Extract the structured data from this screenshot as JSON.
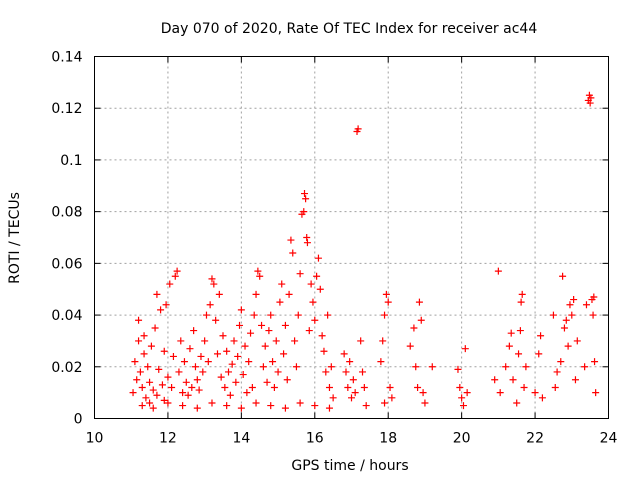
{
  "chart_data": {
    "type": "scatter",
    "title": "Day 070 of 2020, Rate Of TEC Index for receiver ac44",
    "xlabel": "GPS time / hours",
    "ylabel": "ROTI / TECUs",
    "xlim": [
      10,
      24
    ],
    "ylim": [
      0,
      0.14
    ],
    "xticks": [
      10,
      12,
      14,
      16,
      18,
      20,
      22,
      24
    ],
    "yticks": [
      0,
      0.02,
      0.04,
      0.06,
      0.08,
      0.1,
      0.12,
      0.14
    ],
    "xtick_labels": [
      "10",
      "12",
      "14",
      "16",
      "18",
      "20",
      "22",
      "24"
    ],
    "ytick_labels": [
      "0",
      "0.02",
      "0.04",
      "0.06",
      "0.08",
      "0.1",
      "0.12",
      "0.14"
    ],
    "grid": true,
    "marker": "+",
    "color": "#ff0000",
    "series": [
      {
        "points": [
          [
            11.05,
            0.01
          ],
          [
            11.1,
            0.022
          ],
          [
            11.15,
            0.015
          ],
          [
            11.2,
            0.03
          ],
          [
            11.25,
            0.018
          ],
          [
            11.3,
            0.012
          ],
          [
            11.35,
            0.025
          ],
          [
            11.4,
            0.008
          ],
          [
            11.45,
            0.02
          ],
          [
            11.5,
            0.014
          ],
          [
            11.55,
            0.028
          ],
          [
            11.6,
            0.011
          ],
          [
            11.65,
            0.035
          ],
          [
            11.7,
            0.048
          ],
          [
            11.75,
            0.019
          ],
          [
            11.8,
            0.042
          ],
          [
            11.85,
            0.013
          ],
          [
            11.9,
            0.026
          ],
          [
            11.95,
            0.044
          ],
          [
            12.0,
            0.016
          ],
          [
            11.2,
            0.038
          ],
          [
            11.35,
            0.032
          ],
          [
            11.5,
            0.006
          ],
          [
            11.7,
            0.009
          ],
          [
            11.9,
            0.007
          ],
          [
            12.05,
            0.052
          ],
          [
            12.1,
            0.012
          ],
          [
            12.15,
            0.024
          ],
          [
            12.2,
            0.055
          ],
          [
            12.25,
            0.057
          ],
          [
            12.3,
            0.018
          ],
          [
            12.35,
            0.03
          ],
          [
            12.4,
            0.01
          ],
          [
            12.45,
            0.022
          ],
          [
            12.5,
            0.014
          ],
          [
            12.55,
            0.009
          ],
          [
            12.6,
            0.027
          ],
          [
            12.65,
            0.012
          ],
          [
            12.7,
            0.034
          ],
          [
            12.75,
            0.02
          ],
          [
            12.8,
            0.015
          ],
          [
            12.85,
            0.011
          ],
          [
            12.9,
            0.024
          ],
          [
            12.95,
            0.018
          ],
          [
            13.0,
            0.03
          ],
          [
            13.05,
            0.04
          ],
          [
            13.1,
            0.022
          ],
          [
            13.15,
            0.044
          ],
          [
            13.2,
            0.054
          ],
          [
            13.25,
            0.052
          ],
          [
            13.3,
            0.038
          ],
          [
            13.35,
            0.025
          ],
          [
            13.4,
            0.048
          ],
          [
            13.45,
            0.016
          ],
          [
            13.5,
            0.032
          ],
          [
            13.55,
            0.012
          ],
          [
            13.6,
            0.026
          ],
          [
            13.65,
            0.018
          ],
          [
            13.7,
            0.009
          ],
          [
            13.75,
            0.021
          ],
          [
            13.8,
            0.03
          ],
          [
            13.85,
            0.014
          ],
          [
            13.9,
            0.024
          ],
          [
            13.95,
            0.036
          ],
          [
            14.0,
            0.042
          ],
          [
            14.05,
            0.017
          ],
          [
            14.1,
            0.028
          ],
          [
            14.15,
            0.01
          ],
          [
            14.2,
            0.022
          ],
          [
            14.25,
            0.033
          ],
          [
            14.3,
            0.012
          ],
          [
            14.35,
            0.04
          ],
          [
            14.4,
            0.048
          ],
          [
            14.45,
            0.057
          ],
          [
            14.5,
            0.055
          ],
          [
            14.55,
            0.036
          ],
          [
            14.6,
            0.02
          ],
          [
            14.65,
            0.028
          ],
          [
            14.7,
            0.014
          ],
          [
            14.75,
            0.034
          ],
          [
            14.8,
            0.04
          ],
          [
            14.85,
            0.022
          ],
          [
            14.9,
            0.012
          ],
          [
            14.95,
            0.03
          ],
          [
            15.0,
            0.018
          ],
          [
            15.05,
            0.045
          ],
          [
            15.1,
            0.052
          ],
          [
            15.15,
            0.025
          ],
          [
            15.2,
            0.036
          ],
          [
            15.25,
            0.015
          ],
          [
            15.3,
            0.048
          ],
          [
            15.35,
            0.069
          ],
          [
            15.4,
            0.064
          ],
          [
            15.45,
            0.03
          ],
          [
            15.5,
            0.02
          ],
          [
            15.55,
            0.04
          ],
          [
            15.6,
            0.056
          ],
          [
            15.65,
            0.079
          ],
          [
            15.7,
            0.08
          ],
          [
            15.72,
            0.087
          ],
          [
            15.75,
            0.085
          ],
          [
            15.78,
            0.07
          ],
          [
            15.8,
            0.068
          ],
          [
            15.85,
            0.034
          ],
          [
            15.9,
            0.052
          ],
          [
            15.95,
            0.045
          ],
          [
            16.0,
            0.038
          ],
          [
            16.05,
            0.055
          ],
          [
            16.1,
            0.062
          ],
          [
            16.15,
            0.05
          ],
          [
            16.2,
            0.032
          ],
          [
            16.25,
            0.026
          ],
          [
            16.3,
            0.018
          ],
          [
            16.35,
            0.04
          ],
          [
            16.4,
            0.012
          ],
          [
            16.45,
            0.02
          ],
          [
            16.5,
            0.008
          ],
          [
            11.3,
            0.005
          ],
          [
            11.6,
            0.004
          ],
          [
            12.0,
            0.006
          ],
          [
            12.4,
            0.005
          ],
          [
            12.8,
            0.004
          ],
          [
            13.2,
            0.006
          ],
          [
            13.6,
            0.005
          ],
          [
            14.0,
            0.004
          ],
          [
            14.4,
            0.006
          ],
          [
            14.8,
            0.005
          ],
          [
            15.2,
            0.004
          ],
          [
            15.6,
            0.006
          ],
          [
            16.0,
            0.005
          ],
          [
            16.4,
            0.004
          ],
          [
            16.8,
            0.025
          ],
          [
            16.85,
            0.018
          ],
          [
            16.9,
            0.012
          ],
          [
            16.95,
            0.022
          ],
          [
            17.0,
            0.008
          ],
          [
            17.05,
            0.015
          ],
          [
            17.1,
            0.01
          ],
          [
            17.15,
            0.111
          ],
          [
            17.18,
            0.112
          ],
          [
            17.25,
            0.03
          ],
          [
            17.3,
            0.018
          ],
          [
            17.35,
            0.012
          ],
          [
            17.4,
            0.005
          ],
          [
            17.8,
            0.022
          ],
          [
            17.85,
            0.03
          ],
          [
            17.9,
            0.04
          ],
          [
            17.95,
            0.048
          ],
          [
            18.0,
            0.045
          ],
          [
            18.05,
            0.012
          ],
          [
            18.1,
            0.008
          ],
          [
            17.9,
            0.006
          ],
          [
            18.6,
            0.028
          ],
          [
            18.7,
            0.035
          ],
          [
            18.75,
            0.02
          ],
          [
            18.8,
            0.012
          ],
          [
            18.85,
            0.045
          ],
          [
            18.9,
            0.038
          ],
          [
            18.95,
            0.01
          ],
          [
            19.0,
            0.006
          ],
          [
            19.2,
            0.02
          ],
          [
            19.9,
            0.019
          ],
          [
            19.95,
            0.012
          ],
          [
            20.0,
            0.008
          ],
          [
            20.05,
            0.005
          ],
          [
            20.1,
            0.027
          ],
          [
            20.15,
            0.01
          ],
          [
            20.9,
            0.015
          ],
          [
            21.0,
            0.057
          ],
          [
            21.05,
            0.01
          ],
          [
            21.2,
            0.02
          ],
          [
            21.3,
            0.028
          ],
          [
            21.35,
            0.033
          ],
          [
            21.4,
            0.015
          ],
          [
            21.5,
            0.006
          ],
          [
            21.55,
            0.025
          ],
          [
            21.6,
            0.034
          ],
          [
            21.62,
            0.045
          ],
          [
            21.65,
            0.048
          ],
          [
            21.7,
            0.012
          ],
          [
            21.75,
            0.02
          ],
          [
            22.0,
            0.01
          ],
          [
            22.1,
            0.025
          ],
          [
            22.15,
            0.032
          ],
          [
            22.2,
            0.008
          ],
          [
            22.5,
            0.04
          ],
          [
            22.55,
            0.012
          ],
          [
            22.6,
            0.018
          ],
          [
            22.7,
            0.022
          ],
          [
            22.75,
            0.055
          ],
          [
            22.8,
            0.035
          ],
          [
            22.85,
            0.038
          ],
          [
            22.9,
            0.028
          ],
          [
            22.95,
            0.044
          ],
          [
            23.0,
            0.04
          ],
          [
            23.05,
            0.046
          ],
          [
            23.1,
            0.015
          ],
          [
            23.15,
            0.03
          ],
          [
            23.35,
            0.02
          ],
          [
            23.4,
            0.044
          ],
          [
            23.45,
            0.123
          ],
          [
            23.48,
            0.125
          ],
          [
            23.5,
            0.122
          ],
          [
            23.52,
            0.124
          ],
          [
            23.55,
            0.046
          ],
          [
            23.58,
            0.04
          ],
          [
            23.6,
            0.047
          ],
          [
            23.62,
            0.022
          ],
          [
            23.65,
            0.01
          ]
        ]
      }
    ]
  }
}
